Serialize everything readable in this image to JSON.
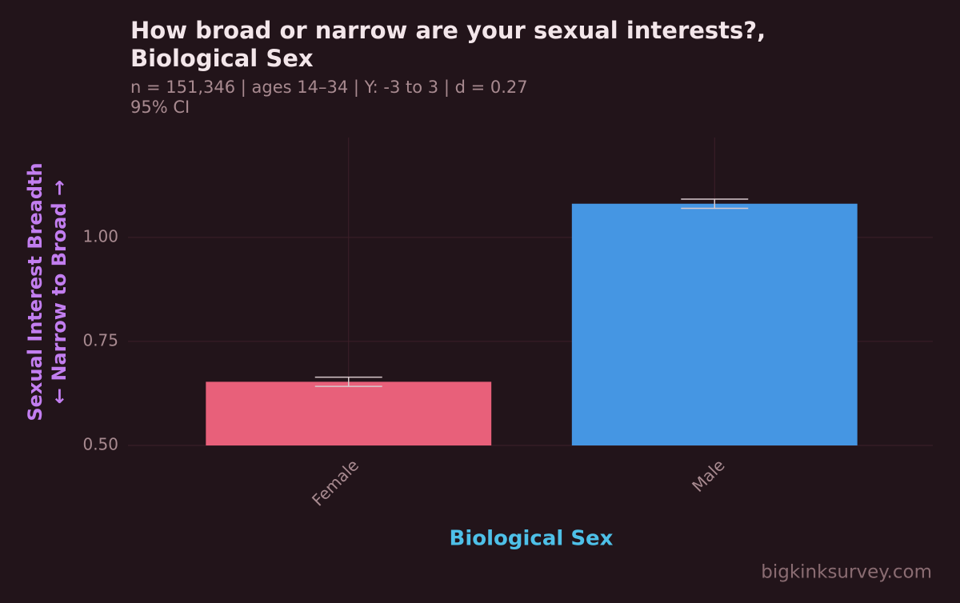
{
  "chart_data": {
    "type": "bar",
    "title": [
      "How broad or narrow are your sexual interests?,",
      "Biological Sex"
    ],
    "subtitle": [
      "n = 151,346  |  ages 14–34  |  Y: -3 to 3  |  d = 0.27",
      "95% CI"
    ],
    "y_label": [
      "Sexual Interest Breadth",
      "← Narrow to Broad →"
    ],
    "x_label": "Biological Sex",
    "watermark": "bigkinksurvey.com",
    "categories": [
      "Female",
      "Male"
    ],
    "values": [
      0.653,
      1.081
    ],
    "errors": [
      0.011,
      0.011
    ],
    "colors": [
      "#e8607a",
      "#4596e3"
    ],
    "ylim": [
      0.5,
      1.24
    ],
    "yticks": [
      {
        "value": 0.5,
        "label": "0.50"
      },
      {
        "value": 0.75,
        "label": "0.75"
      },
      {
        "value": 1,
        "label": "1.00"
      }
    ],
    "grid": true
  }
}
